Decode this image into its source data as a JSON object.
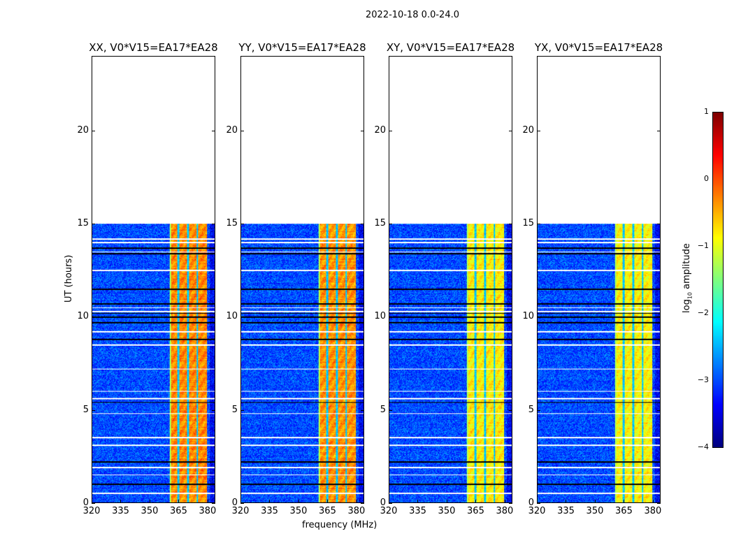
{
  "chart_data": {
    "type": "heatmap",
    "suptitle": "2022-10-18 0.0-24.0",
    "xlabel": "frequency (MHz)",
    "ylabel": "UT (hours)",
    "xlim": [
      320,
      384
    ],
    "ylim": [
      0,
      24
    ],
    "xticks": [
      320,
      335,
      350,
      365,
      380
    ],
    "yticks": [
      0,
      5,
      10,
      15,
      20
    ],
    "data_time_range_hours": [
      0,
      15
    ],
    "bright_band_mhz": [
      360.5,
      380
    ],
    "band_notches_mhz": [
      365,
      370,
      375
    ],
    "flagged_white_hours": [
      0.5,
      1.5,
      1.9,
      3.1,
      3.5,
      4.8,
      5.6,
      6.0,
      7.2,
      8.5,
      9.2,
      10.3,
      10.5,
      12.5,
      13.5,
      14.0,
      14.2
    ],
    "flagged_black_hours": [
      1.0,
      2.2,
      5.4,
      8.8,
      9.7,
      10.0,
      10.2,
      10.7,
      11.5,
      13.4,
      13.7
    ],
    "panels": [
      {
        "title": "XX, V0*V15=EA17*EA28",
        "band_level": -0.3,
        "background_level": -3.0
      },
      {
        "title": "YY, V0*V15=EA17*EA28",
        "band_level": -0.35,
        "background_level": -3.0
      },
      {
        "title": "XY, V0*V15=EA17*EA28",
        "band_level": -0.8,
        "background_level": -3.0
      },
      {
        "title": "YX, V0*V15=EA17*EA28",
        "band_level": -0.85,
        "background_level": -3.0
      }
    ],
    "colorbar": {
      "label": "log",
      "label_sub": "10",
      "label_rest": " amplitude",
      "range": [
        -4,
        1
      ],
      "ticks": [
        "1",
        "0",
        "−1",
        "−2",
        "−3",
        "−4"
      ],
      "colormap": "jet"
    }
  }
}
